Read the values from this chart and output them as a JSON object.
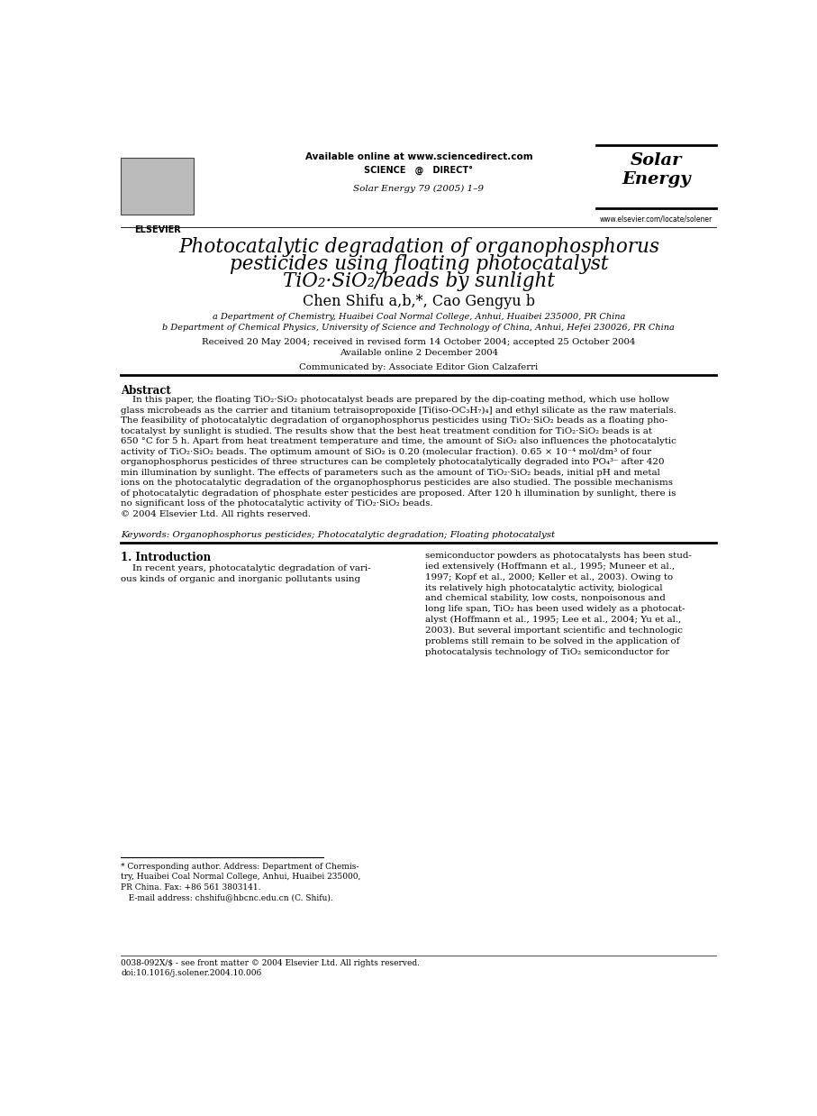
{
  "page_width": 9.07,
  "page_height": 12.38,
  "bg_color": "#ffffff",
  "available_online": "Available online at www.sciencedirect.com",
  "sciencedirect_logo": "SCIENCE   @   DIRECT°",
  "journal_line": "Solar Energy 79 (2005) 1–9",
  "journal_name_line1": "Solar",
  "journal_name_line2": "Energy",
  "elsevier_text": "ELSEVIER",
  "website": "www.elsevier.com/locate/solener",
  "title_line1": "Photocatalytic degradation of organophosphorus",
  "title_line2": "pesticides using floating photocatalyst",
  "title_line3": "TiO₂·SiO₂/beads by sunlight",
  "authors": "Chen Shifu a,b,*, Cao Gengyu b",
  "affil_a": "a Department of Chemistry, Huaibei Coal Normal College, Anhui, Huaibei 235000, PR China",
  "affil_b": "b Department of Chemical Physics, University of Science and Technology of China, Anhui, Hefei 230026, PR China",
  "received": "Received 20 May 2004; received in revised form 14 October 2004; accepted 25 October 2004",
  "available_online2": "Available online 2 December 2004",
  "communicated": "Communicated by: Associate Editor Gion Calzaferri",
  "abstract_title": "Abstract",
  "abstract_body": "    In this paper, the floating TiO₂·SiO₂ photocatalyst beads are prepared by the dip-coating method, which use hollow\nglass microbeads as the carrier and titanium tetraisopropoxide [Ti(iso-OC₃H₇)₄] and ethyl silicate as the raw materials.\nThe feasibility of photocatalytic degradation of organophosphorus pesticides using TiO₂·SiO₂ beads as a floating pho-\ntocatalyst by sunlight is studied. The results show that the best heat treatment condition for TiO₂·SiO₂ beads is at\n650 °C for 5 h. Apart from heat treatment temperature and time, the amount of SiO₂ also influences the photocatalytic\nactivity of TiO₂·SiO₂ beads. The optimum amount of SiO₂ is 0.20 (molecular fraction). 0.65 × 10⁻⁴ mol/dm³ of four\norganophosphorus pesticides of three structures can be completely photocatalytically degraded into PO₄³⁻ after 420\nmin illumination by sunlight. The effects of parameters such as the amount of TiO₂·SiO₂ beads, initial pH and metal\nions on the photocatalytic degradation of the organophosphorus pesticides are also studied. The possible mechanisms\nof photocatalytic degradation of phosphate ester pesticides are proposed. After 120 h illumination by sunlight, there is\nno significant loss of the photocatalytic activity of TiO₂·SiO₂ beads.\n© 2004 Elsevier Ltd. All rights reserved.",
  "keywords": "Keywords: Organophosphorus pesticides; Photocatalytic degradation; Floating photocatalyst",
  "section1_title": "1. Introduction",
  "intro_left": "    In recent years, photocatalytic degradation of vari-\nous kinds of organic and inorganic pollutants using",
  "intro_right": "semiconductor powders as photocatalysts has been stud-\nied extensively (Hoffmann et al., 1995; Muneer et al.,\n1997; Kopf et al., 2000; Keller et al., 2003). Owing to\nits relatively high photocatalytic activity, biological\nand chemical stability, low costs, nonpoisonous and\nlong life span, TiO₂ has been used widely as a photocat-\nalyst (Hoffmann et al., 1995; Lee et al., 2004; Yu et al.,\n2003). But several important scientific and technologic\nproblems still remain to be solved in the application of\nphotocatalysis technology of TiO₂ semiconductor for",
  "footnote": "* Corresponding author. Address: Department of Chemis-\ntry, Huaibei Coal Normal College, Anhui, Huaibei 235000,\nPR China. Fax: +86 561 3803141.\n   E-mail address: chshifu@hbcnc.edu.cn (C. Shifu).",
  "bottom_line1": "0038-092X/$ - see front matter © 2004 Elsevier Ltd. All rights reserved.",
  "bottom_line2": "doi:10.1016/j.solener.2004.10.006"
}
